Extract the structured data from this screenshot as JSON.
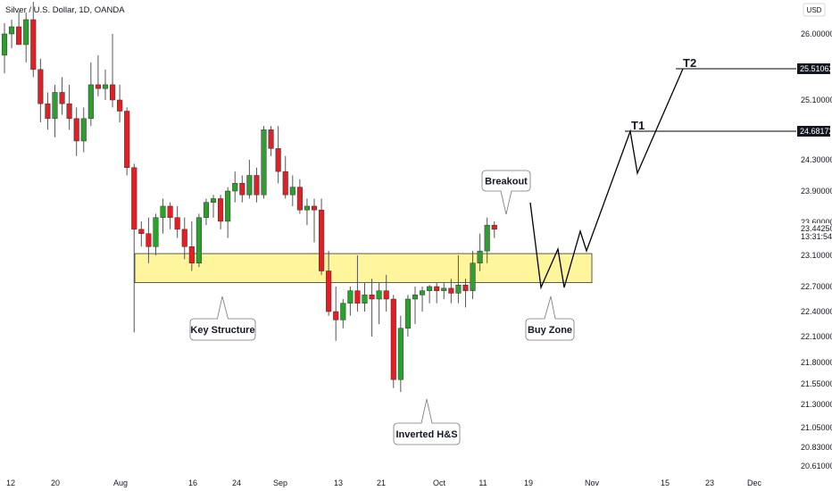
{
  "header": {
    "title": "Silver / U.S. Dollar, 1D, OANDA",
    "currency_button": "USD"
  },
  "colors": {
    "up": "#26a69a",
    "down": "#ef5350",
    "up_body": "#2ca02c",
    "zone_fill": "#fff59d",
    "zone_stroke": "#333333",
    "price_badge": "#131722",
    "line": "#000000"
  },
  "chart_data": {
    "type": "candlestick",
    "title": "Silver / U.S. Dollar, 1D, OANDA",
    "y_ticks": [
      "26.00000",
      "25.10000",
      "24.30000",
      "23.90000",
      "23.10000",
      "22.70000",
      "22.40000",
      "22.10000",
      "21.80000",
      "21.55000",
      "21.30000",
      "21.05000",
      "20.83000",
      "20.61000"
    ],
    "x_ticks": [
      "12",
      "20",
      "Aug",
      "16",
      "24",
      "Sep",
      "13",
      "21",
      "Oct",
      "11",
      "19",
      "Nov",
      "15",
      "23",
      "Dec"
    ],
    "price_labels": {
      "t2_price": "25.51062",
      "t1_price": "24.68172",
      "current_price": "23.44250",
      "countdown": "13:31:54",
      "partial_top_label": "23.60000"
    },
    "targets": {
      "t1": "T1",
      "t2": "T2"
    },
    "zone": {
      "low": 22.75,
      "high": 23.12
    },
    "annotations": {
      "breakout": "Breakout",
      "key_structure": "Key Structure",
      "buy_zone": "Buy Zone",
      "inverted_hs": "Inverted H&S"
    },
    "candles": [
      {
        "o": 25.7,
        "h": 26.15,
        "l": 25.45,
        "c": 26.0
      },
      {
        "o": 26.0,
        "h": 26.2,
        "l": 25.8,
        "c": 26.1
      },
      {
        "o": 26.1,
        "h": 26.32,
        "l": 25.9,
        "c": 25.85
      },
      {
        "o": 25.85,
        "h": 26.3,
        "l": 25.6,
        "c": 26.2
      },
      {
        "o": 26.2,
        "h": 26.45,
        "l": 25.4,
        "c": 25.5
      },
      {
        "o": 25.5,
        "h": 25.65,
        "l": 24.8,
        "c": 25.05
      },
      {
        "o": 25.05,
        "h": 25.2,
        "l": 24.7,
        "c": 24.85
      },
      {
        "o": 24.85,
        "h": 25.3,
        "l": 24.6,
        "c": 25.2
      },
      {
        "o": 25.2,
        "h": 25.4,
        "l": 24.9,
        "c": 25.05
      },
      {
        "o": 25.05,
        "h": 25.3,
        "l": 24.7,
        "c": 24.85
      },
      {
        "o": 24.85,
        "h": 25.0,
        "l": 24.35,
        "c": 24.55
      },
      {
        "o": 24.55,
        "h": 25.0,
        "l": 24.4,
        "c": 24.85
      },
      {
        "o": 24.85,
        "h": 25.6,
        "l": 24.75,
        "c": 25.3
      },
      {
        "o": 25.3,
        "h": 25.7,
        "l": 25.15,
        "c": 25.25
      },
      {
        "o": 25.25,
        "h": 25.5,
        "l": 25.1,
        "c": 25.3
      },
      {
        "o": 25.3,
        "h": 26.0,
        "l": 25.0,
        "c": 25.1
      },
      {
        "o": 25.1,
        "h": 25.3,
        "l": 24.8,
        "c": 24.95
      },
      {
        "o": 24.95,
        "h": 25.0,
        "l": 24.1,
        "c": 24.2
      },
      {
        "o": 24.2,
        "h": 24.25,
        "l": 22.15,
        "c": 23.4
      },
      {
        "o": 23.4,
        "h": 23.5,
        "l": 23.2,
        "c": 23.35
      },
      {
        "o": 23.35,
        "h": 23.55,
        "l": 23.0,
        "c": 23.2
      },
      {
        "o": 23.2,
        "h": 23.6,
        "l": 23.1,
        "c": 23.55
      },
      {
        "o": 23.55,
        "h": 23.8,
        "l": 23.35,
        "c": 23.7
      },
      {
        "o": 23.7,
        "h": 23.75,
        "l": 23.4,
        "c": 23.55
      },
      {
        "o": 23.55,
        "h": 23.7,
        "l": 23.3,
        "c": 23.4
      },
      {
        "o": 23.4,
        "h": 23.55,
        "l": 23.05,
        "c": 23.2
      },
      {
        "o": 23.2,
        "h": 23.5,
        "l": 22.9,
        "c": 23.0
      },
      {
        "o": 23.0,
        "h": 23.6,
        "l": 22.95,
        "c": 23.55
      },
      {
        "o": 23.55,
        "h": 23.8,
        "l": 23.45,
        "c": 23.75
      },
      {
        "o": 23.75,
        "h": 23.85,
        "l": 23.55,
        "c": 23.8
      },
      {
        "o": 23.8,
        "h": 23.85,
        "l": 23.4,
        "c": 23.5
      },
      {
        "o": 23.5,
        "h": 23.95,
        "l": 23.3,
        "c": 23.9
      },
      {
        "o": 23.9,
        "h": 24.15,
        "l": 23.75,
        "c": 24.0
      },
      {
        "o": 24.0,
        "h": 24.1,
        "l": 23.75,
        "c": 23.85
      },
      {
        "o": 23.85,
        "h": 24.3,
        "l": 23.8,
        "c": 24.1
      },
      {
        "o": 24.1,
        "h": 24.2,
        "l": 23.75,
        "c": 23.85
      },
      {
        "o": 23.85,
        "h": 24.75,
        "l": 23.8,
        "c": 24.7
      },
      {
        "o": 24.7,
        "h": 24.75,
        "l": 24.35,
        "c": 24.45
      },
      {
        "o": 24.45,
        "h": 24.75,
        "l": 24.0,
        "c": 24.15
      },
      {
        "o": 24.15,
        "h": 24.35,
        "l": 23.8,
        "c": 23.85
      },
      {
        "o": 23.85,
        "h": 24.1,
        "l": 23.7,
        "c": 23.95
      },
      {
        "o": 23.95,
        "h": 24.05,
        "l": 23.6,
        "c": 23.65
      },
      {
        "o": 23.65,
        "h": 23.8,
        "l": 23.45,
        "c": 23.7
      },
      {
        "o": 23.7,
        "h": 23.8,
        "l": 23.25,
        "c": 23.65
      },
      {
        "o": 23.65,
        "h": 23.8,
        "l": 22.85,
        "c": 22.9
      },
      {
        "o": 22.9,
        "h": 23.15,
        "l": 22.35,
        "c": 22.4
      },
      {
        "o": 22.4,
        "h": 22.7,
        "l": 22.05,
        "c": 22.3
      },
      {
        "o": 22.3,
        "h": 22.55,
        "l": 22.2,
        "c": 22.5
      },
      {
        "o": 22.5,
        "h": 22.7,
        "l": 22.35,
        "c": 22.65
      },
      {
        "o": 22.65,
        "h": 23.1,
        "l": 22.4,
        "c": 22.5
      },
      {
        "o": 22.5,
        "h": 22.75,
        "l": 22.4,
        "c": 22.6
      },
      {
        "o": 22.6,
        "h": 22.8,
        "l": 22.1,
        "c": 22.55
      },
      {
        "o": 22.55,
        "h": 22.75,
        "l": 22.25,
        "c": 22.65
      },
      {
        "o": 22.65,
        "h": 22.85,
        "l": 22.4,
        "c": 22.55
      },
      {
        "o": 22.55,
        "h": 22.6,
        "l": 21.5,
        "c": 21.6
      },
      {
        "o": 21.6,
        "h": 22.35,
        "l": 21.45,
        "c": 22.2
      },
      {
        "o": 22.2,
        "h": 22.6,
        "l": 22.1,
        "c": 22.55
      },
      {
        "o": 22.55,
        "h": 22.7,
        "l": 22.25,
        "c": 22.6
      },
      {
        "o": 22.6,
        "h": 22.7,
        "l": 22.4,
        "c": 22.65
      },
      {
        "o": 22.65,
        "h": 22.72,
        "l": 22.5,
        "c": 22.7
      },
      {
        "o": 22.7,
        "h": 22.75,
        "l": 22.5,
        "c": 22.65
      },
      {
        "o": 22.65,
        "h": 22.75,
        "l": 22.55,
        "c": 22.68
      },
      {
        "o": 22.68,
        "h": 22.8,
        "l": 22.5,
        "c": 22.62
      },
      {
        "o": 22.62,
        "h": 23.1,
        "l": 22.5,
        "c": 22.72
      },
      {
        "o": 22.72,
        "h": 22.8,
        "l": 22.45,
        "c": 22.65
      },
      {
        "o": 22.65,
        "h": 23.15,
        "l": 22.55,
        "c": 23.0
      },
      {
        "o": 23.0,
        "h": 23.35,
        "l": 22.9,
        "c": 23.15
      },
      {
        "o": 23.15,
        "h": 23.55,
        "l": 23.0,
        "c": 23.45
      },
      {
        "o": 23.45,
        "h": 23.5,
        "l": 23.3,
        "c": 23.4
      }
    ]
  }
}
